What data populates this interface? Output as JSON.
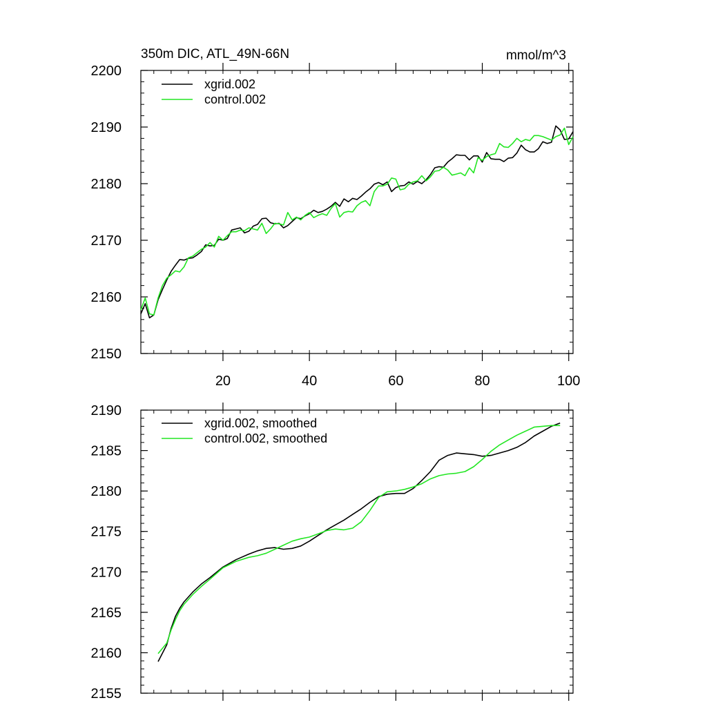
{
  "figure": {
    "title_left": "350m DIC, ATL_49N-66N",
    "title_right": "mmol/m^3"
  },
  "colors": {
    "xgrid": "#000000",
    "control": "#22e622",
    "axis": "#000000"
  },
  "chart_data": [
    {
      "type": "line",
      "title": "350m DIC, ATL_49N-66N",
      "units": "mmol/m^3",
      "xlim": [
        1,
        101
      ],
      "ylim": [
        2150,
        2200
      ],
      "xticks": [
        20,
        40,
        60,
        80,
        100
      ],
      "yticks": [
        2150,
        2160,
        2170,
        2180,
        2190,
        2200
      ],
      "legend": {
        "placement": "top-left",
        "entries": [
          "xgrid.002",
          "control.002"
        ]
      },
      "series": [
        {
          "name": "xgrid.002",
          "color": "#000000",
          "x_start": 1,
          "values": [
            2157.0,
            2158.8,
            2156.3,
            2156.8,
            2159.5,
            2161.3,
            2163.0,
            2164.5,
            2165.6,
            2166.6,
            2166.5,
            2166.8,
            2166.9,
            2167.4,
            2168.0,
            2169.2,
            2169.0,
            2169.1,
            2170.2,
            2170.0,
            2170.3,
            2171.8,
            2172.0,
            2172.2,
            2171.3,
            2171.6,
            2172.5,
            2172.8,
            2173.8,
            2173.9,
            2173.1,
            2172.9,
            2173.0,
            2172.2,
            2172.6,
            2173.3,
            2174.0,
            2173.8,
            2174.3,
            2174.7,
            2175.3,
            2174.9,
            2175.1,
            2175.5,
            2176.0,
            2176.7,
            2176.0,
            2177.3,
            2176.8,
            2177.4,
            2177.2,
            2177.8,
            2178.5,
            2179.1,
            2179.9,
            2180.2,
            2179.8,
            2180.3,
            2178.6,
            2179.3,
            2179.6,
            2179.7,
            2180.3,
            2179.9,
            2180.4,
            2180.0,
            2180.7,
            2181.6,
            2182.8,
            2183.0,
            2182.9,
            2183.8,
            2184.4,
            2185.1,
            2185.0,
            2185.0,
            2184.2,
            2184.9,
            2184.9,
            2183.8,
            2185.5,
            2184.4,
            2184.3,
            2184.3,
            2183.9,
            2184.5,
            2184.6,
            2185.4,
            2186.8,
            2186.0,
            2185.6,
            2185.6,
            2186.2,
            2187.4,
            2187.1,
            2187.3,
            2190.2,
            2189.5,
            2187.8,
            2187.9,
            2189.2
          ]
        },
        {
          "name": "control.002",
          "color": "#22e622",
          "x_start": 1,
          "values": [
            2157.7,
            2159.8,
            2157.0,
            2156.8,
            2159.8,
            2162.0,
            2163.3,
            2163.9,
            2164.6,
            2164.4,
            2165.3,
            2166.9,
            2167.2,
            2167.8,
            2168.4,
            2168.8,
            2169.6,
            2168.8,
            2170.7,
            2170.0,
            2170.8,
            2171.5,
            2171.5,
            2171.8,
            2171.7,
            2172.2,
            2172.0,
            2171.8,
            2173.0,
            2171.2,
            2172.0,
            2173.0,
            2172.9,
            2172.7,
            2174.9,
            2173.6,
            2174.1,
            2173.6,
            2174.4,
            2174.9,
            2174.0,
            2174.4,
            2174.7,
            2174.4,
            2175.6,
            2176.5,
            2174.1,
            2174.9,
            2175.1,
            2175.0,
            2176.1,
            2176.7,
            2177.0,
            2176.1,
            2178.6,
            2179.6,
            2179.6,
            2179.9,
            2181.0,
            2180.8,
            2178.9,
            2179.1,
            2179.9,
            2180.3,
            2180.5,
            2181.4,
            2180.5,
            2181.2,
            2182.2,
            2182.3,
            2182.9,
            2182.4,
            2181.5,
            2181.7,
            2181.9,
            2181.4,
            2182.8,
            2181.9,
            2184.6,
            2184.1,
            2184.8,
            2185.1,
            2185.3,
            2187.1,
            2186.5,
            2186.4,
            2187.1,
            2188.0,
            2187.4,
            2187.8,
            2187.6,
            2188.5,
            2188.5,
            2188.3,
            2188.0,
            2187.7,
            2188.3,
            2188.6,
            2189.8,
            2186.9,
            2188.3
          ]
        }
      ]
    },
    {
      "type": "line",
      "xlim": [
        1,
        101
      ],
      "ylim": [
        2155,
        2190
      ],
      "xticks": [
        20,
        40,
        60,
        80,
        100
      ],
      "yticks": [
        2155,
        2160,
        2165,
        2170,
        2175,
        2180,
        2185,
        2190
      ],
      "legend": {
        "placement": "top-left",
        "entries": [
          "xgrid.002, smoothed",
          "control.002, smoothed"
        ]
      },
      "series": [
        {
          "name": "xgrid.002, smoothed",
          "color": "#000000",
          "x": [
            5,
            7,
            8,
            9,
            10,
            11,
            12,
            13,
            14,
            15,
            17,
            20,
            23,
            26,
            28,
            30,
            32,
            34,
            36,
            38,
            40,
            42,
            44,
            46,
            48,
            50,
            52,
            54,
            56,
            58,
            60,
            62,
            64,
            66,
            68,
            70,
            72,
            74,
            76,
            78,
            80,
            82,
            84,
            86,
            88,
            90,
            92,
            94,
            96,
            98
          ],
          "values": [
            2158.9,
            2161.0,
            2163.0,
            2164.5,
            2165.5,
            2166.3,
            2166.9,
            2167.5,
            2168.0,
            2168.5,
            2169.3,
            2170.6,
            2171.5,
            2172.2,
            2172.6,
            2172.9,
            2173.0,
            2172.8,
            2172.9,
            2173.2,
            2173.8,
            2174.5,
            2175.2,
            2175.8,
            2176.4,
            2177.1,
            2177.8,
            2178.6,
            2179.3,
            2179.6,
            2179.7,
            2179.7,
            2180.3,
            2181.3,
            2182.4,
            2183.8,
            2184.4,
            2184.7,
            2184.6,
            2184.5,
            2184.3,
            2184.4,
            2184.7,
            2185.0,
            2185.4,
            2186.0,
            2186.8,
            2187.4,
            2188.0,
            2188.4
          ]
        },
        {
          "name": "control.002, smoothed",
          "color": "#22e622",
          "x": [
            5,
            7,
            8,
            9,
            10,
            11,
            12,
            13,
            14,
            15,
            17,
            20,
            23,
            26,
            28,
            30,
            32,
            34,
            36,
            38,
            40,
            42,
            44,
            46,
            48,
            50,
            52,
            54,
            56,
            58,
            60,
            62,
            64,
            66,
            68,
            70,
            72,
            74,
            76,
            78,
            80,
            82,
            84,
            86,
            88,
            90,
            92,
            94,
            96,
            98
          ],
          "values": [
            2159.9,
            2161.2,
            2162.8,
            2164.1,
            2165.2,
            2166.0,
            2166.6,
            2167.2,
            2167.7,
            2168.2,
            2169.1,
            2170.5,
            2171.3,
            2171.8,
            2172.0,
            2172.3,
            2172.8,
            2173.3,
            2173.8,
            2174.1,
            2174.3,
            2174.7,
            2175.1,
            2175.3,
            2175.2,
            2175.4,
            2176.2,
            2177.6,
            2179.2,
            2179.9,
            2180.0,
            2180.2,
            2180.5,
            2180.9,
            2181.5,
            2181.9,
            2182.1,
            2182.2,
            2182.4,
            2183.0,
            2183.9,
            2184.9,
            2185.7,
            2186.3,
            2186.9,
            2187.4,
            2187.9,
            2188.0,
            2188.1,
            2188.1
          ]
        }
      ]
    }
  ]
}
